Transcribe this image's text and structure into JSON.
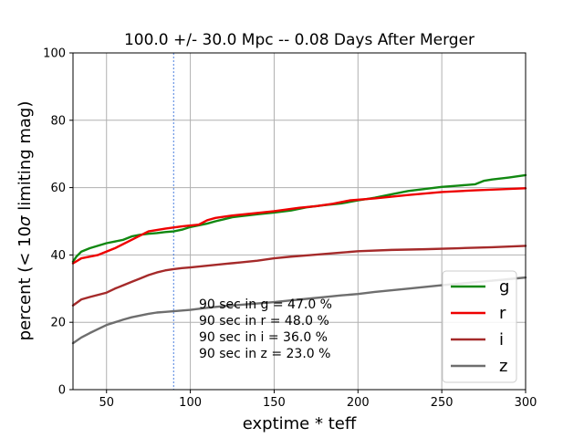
{
  "chart_data": {
    "type": "line",
    "title": "100.0 +/- 30.0 Mpc  -- 0.08 Days After Merger",
    "xlabel": "exptime * teff",
    "ylabel_prefix": "percent (< 10",
    "ylabel_sigma": "σ",
    "ylabel_suffix": " limiting mag)",
    "xlim": [
      30,
      300
    ],
    "ylim": [
      0,
      100
    ],
    "xticks": [
      50,
      100,
      150,
      200,
      250,
      300
    ],
    "yticks": [
      0,
      20,
      40,
      60,
      80,
      100
    ],
    "grid": true,
    "legend_position": "lower right",
    "vline": {
      "x": 90,
      "color": "#1f5fd6",
      "style": "dashed"
    },
    "annotations": [
      "90 sec in g = 47.0 %",
      "90 sec in r = 48.0 %",
      "90 sec in i = 36.0 %",
      "90 sec in z = 23.0 %"
    ],
    "series": [
      {
        "name": "g",
        "color": "#118811",
        "x": [
          30,
          32,
          35,
          40,
          50,
          60,
          65,
          70,
          75,
          80,
          85,
          90,
          95,
          100,
          110,
          115,
          120,
          125,
          130,
          140,
          150,
          160,
          170,
          180,
          190,
          200,
          210,
          220,
          230,
          240,
          250,
          260,
          265,
          270,
          275,
          280,
          290,
          300
        ],
        "y": [
          38,
          39.5,
          41,
          42,
          43.5,
          44.5,
          45.5,
          46,
          46.3,
          46.5,
          46.8,
          47,
          47.5,
          48.3,
          49.3,
          50,
          50.6,
          51.2,
          51.5,
          52.1,
          52.6,
          53.2,
          54.2,
          54.8,
          55.3,
          56.2,
          57,
          58,
          59,
          59.6,
          60.2,
          60.6,
          60.8,
          61,
          62,
          62.4,
          63,
          63.7
        ]
      },
      {
        "name": "r",
        "color": "#ee0000",
        "x": [
          30,
          35,
          45,
          55,
          65,
          75,
          85,
          95,
          105,
          110,
          115,
          125,
          135,
          150,
          165,
          175,
          185,
          195,
          210,
          230,
          250,
          270,
          300
        ],
        "y": [
          37.5,
          39,
          40,
          42,
          44.5,
          47,
          47.8,
          48.5,
          49,
          50.3,
          51,
          51.7,
          52.2,
          53,
          54,
          54.5,
          55.2,
          56.2,
          56.8,
          57.8,
          58.7,
          59.2,
          59.8
        ]
      },
      {
        "name": "i",
        "color": "#a52a2a",
        "x": [
          30,
          35,
          40,
          50,
          55,
          60,
          65,
          70,
          75,
          80,
          85,
          90,
          95,
          100,
          110,
          120,
          130,
          140,
          150,
          160,
          170,
          180,
          190,
          200,
          220,
          240,
          260,
          280,
          300
        ],
        "y": [
          25,
          26.8,
          27.5,
          28.8,
          30,
          31,
          32,
          33,
          34,
          34.8,
          35.4,
          35.8,
          36.1,
          36.3,
          36.8,
          37.3,
          37.8,
          38.3,
          39,
          39.5,
          39.9,
          40.3,
          40.7,
          41.1,
          41.5,
          41.7,
          42,
          42.3,
          42.7
        ]
      },
      {
        "name": "z",
        "color": "#6e6e6e",
        "x": [
          30,
          35,
          40,
          45,
          50,
          55,
          60,
          65,
          70,
          75,
          80,
          85,
          90,
          95,
          100,
          110,
          120,
          130,
          140,
          150,
          160,
          170,
          180,
          190,
          200,
          210,
          230,
          250,
          270,
          300
        ],
        "y": [
          13.8,
          15.5,
          16.8,
          18,
          19.2,
          20,
          20.8,
          21.5,
          22,
          22.5,
          22.9,
          23.1,
          23.3,
          23.5,
          23.7,
          24.3,
          24.8,
          25.2,
          25.6,
          26,
          26.5,
          27,
          27.5,
          28,
          28.4,
          29,
          30,
          31,
          31.9,
          33.3
        ]
      }
    ]
  }
}
